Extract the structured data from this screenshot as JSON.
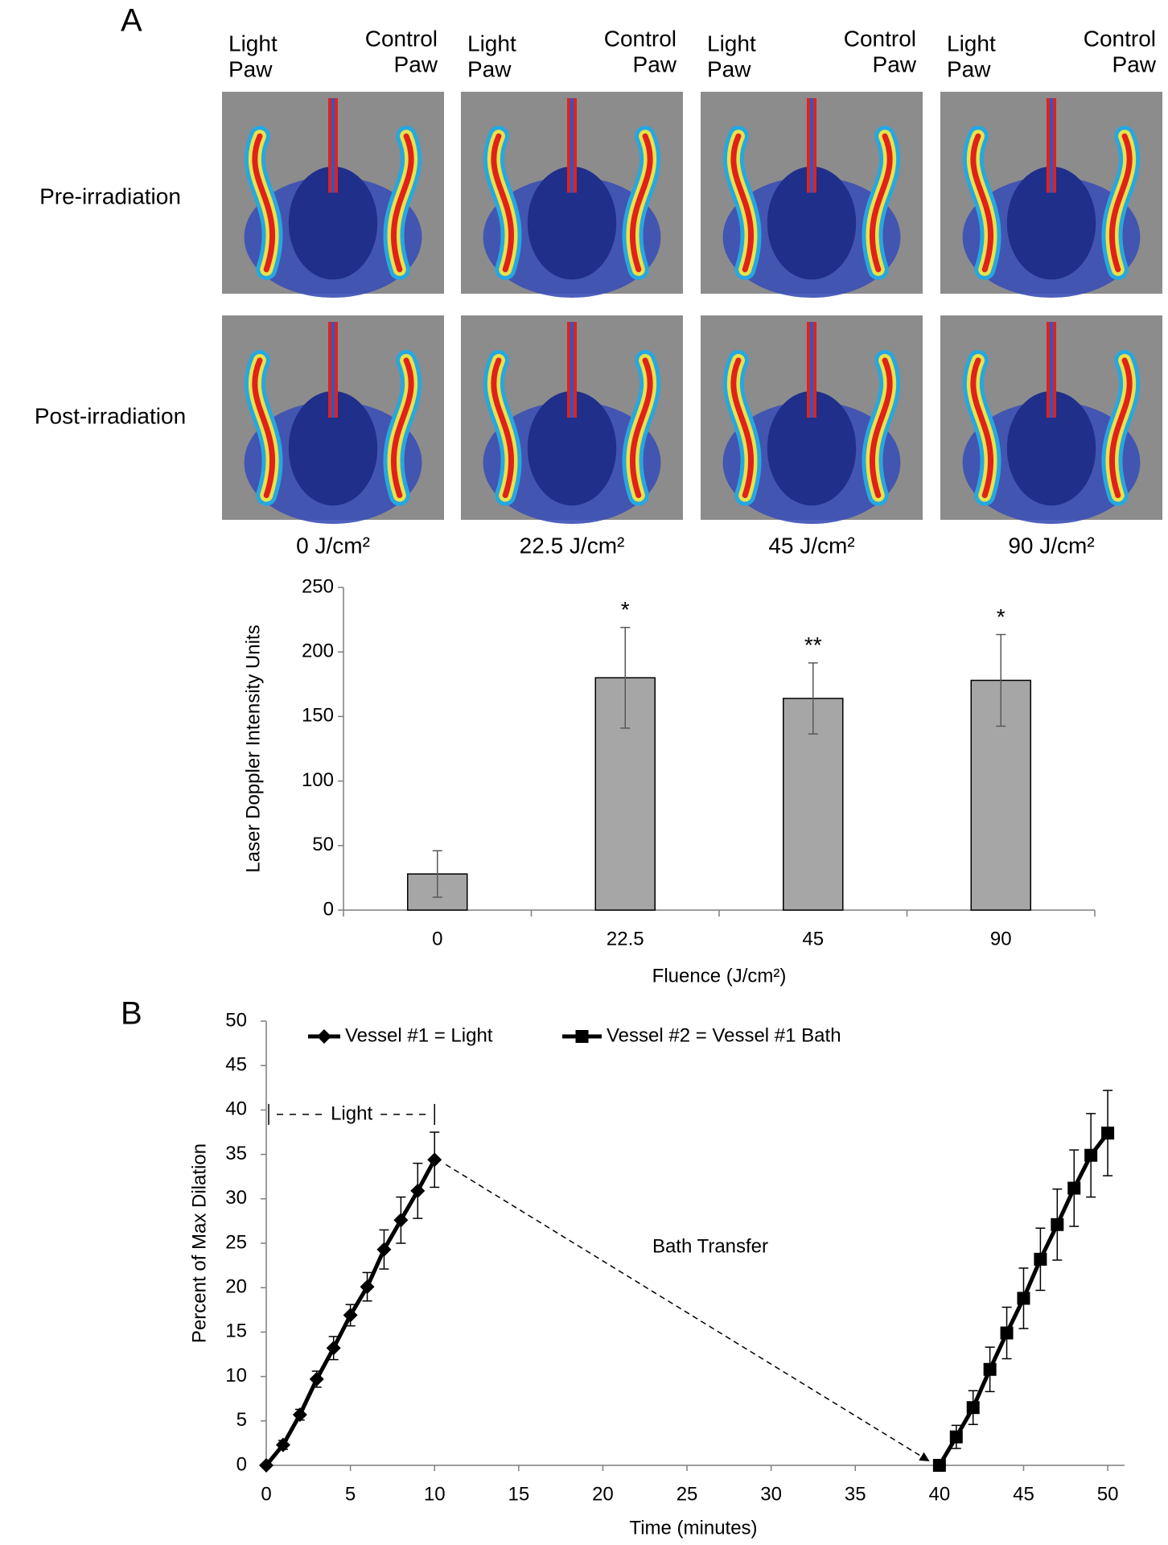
{
  "panel_a": {
    "label": "A",
    "rows": [
      "Pre-irradiation",
      "Post-irradiation"
    ],
    "columns": [
      {
        "light_paw": [
          "Light",
          "Paw"
        ],
        "control_paw": [
          "Control",
          "Paw"
        ],
        "fluence": "0 J/cm²"
      },
      {
        "light_paw": [
          "Light",
          "Paw"
        ],
        "control_paw": [
          "Control",
          "Paw"
        ],
        "fluence": "22.5 J/cm²"
      },
      {
        "light_paw": [
          "Light",
          "Paw"
        ],
        "control_paw": [
          "Control",
          "Paw"
        ],
        "fluence": "45 J/cm²"
      },
      {
        "light_paw": [
          "Light",
          "Paw"
        ],
        "control_paw": [
          "Control",
          "Paw"
        ],
        "fluence": "90 J/cm²"
      }
    ]
  },
  "chart_data": [
    {
      "type": "bar",
      "y_label": "Laser Doppler Intensity Units",
      "x_label": "Fluence (J/cm²)",
      "categories": [
        "0",
        "22.5",
        "45",
        "90"
      ],
      "values": [
        28,
        180,
        164,
        178
      ],
      "errors": [
        18,
        39,
        27.5,
        35.5
      ],
      "annotations": [
        "",
        "*",
        "**",
        "*"
      ],
      "color": "#a6a6a6",
      "ylim": [
        0,
        250
      ],
      "yticks": [
        0,
        50,
        100,
        150,
        200,
        250
      ]
    },
    {
      "type": "line",
      "panel_label": "B",
      "y_label": "Percent of Max Dilation",
      "x_label": "Time (minutes)",
      "bracket_label": "Light",
      "arrow_label": "Bath Transfer",
      "series": [
        {
          "name": "Vessel #1 = Light",
          "color": "#000000",
          "marker": "diamond",
          "x": [
            0,
            1,
            2,
            3,
            4,
            5,
            6,
            7,
            8,
            9,
            10
          ],
          "values": [
            0,
            2.3,
            5.7,
            9.7,
            13.2,
            16.9,
            20.1,
            24.3,
            27.6,
            30.9,
            34.4
          ],
          "errors": [
            0,
            0.5,
            0.6,
            0.9,
            1.3,
            1.2,
            1.6,
            2.2,
            2.6,
            3.1,
            3.1
          ]
        },
        {
          "name": "Vessel #2 = Vessel #1 Bath",
          "color": "#000000",
          "marker": "square",
          "x": [
            40,
            41,
            42,
            43,
            44,
            45,
            46,
            47,
            48,
            49,
            50
          ],
          "values": [
            0,
            3.2,
            6.5,
            10.8,
            14.9,
            18.8,
            23.2,
            27.1,
            31.2,
            34.9,
            37.4
          ],
          "errors": [
            0,
            1.3,
            1.9,
            2.5,
            2.9,
            3.4,
            3.5,
            4.0,
            4.3,
            4.7,
            4.8
          ]
        }
      ],
      "xlim": [
        0,
        51
      ],
      "xticks": [
        0,
        5,
        10,
        15,
        20,
        25,
        30,
        35,
        40,
        45,
        50
      ],
      "ylim": [
        0,
        50
      ],
      "yticks": [
        0,
        5,
        10,
        15,
        20,
        25,
        30,
        35,
        40,
        45,
        50
      ],
      "legend": "top"
    }
  ]
}
